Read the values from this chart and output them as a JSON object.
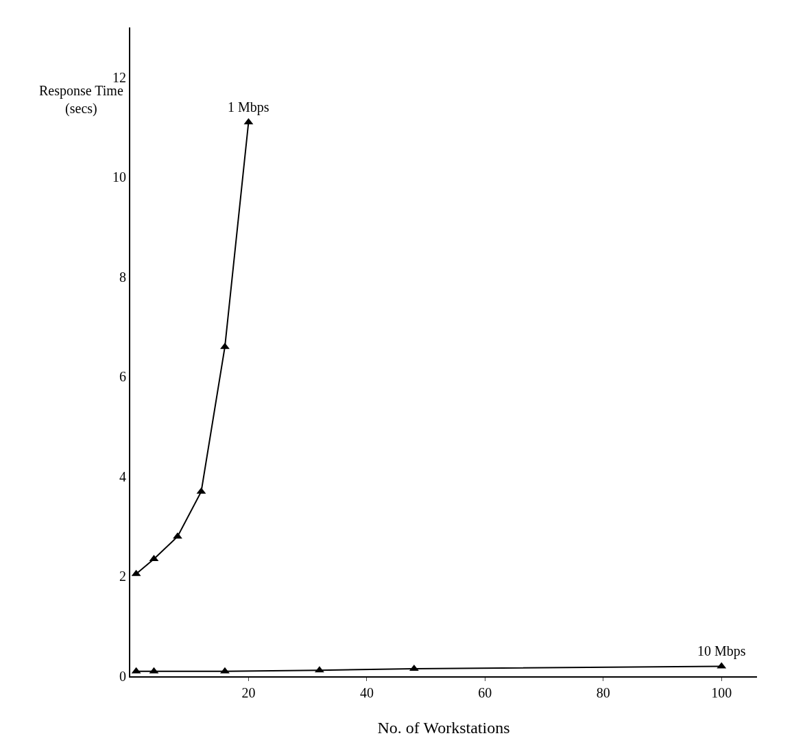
{
  "chart_data": {
    "type": "line",
    "xlabel": "No. of Workstations",
    "ylabel": "Response Time (secs)",
    "series": [
      {
        "name": "1 Mbps",
        "color": "#000000",
        "x": [
          1,
          4,
          8,
          12,
          16,
          20
        ],
        "values": [
          2.05,
          2.35,
          2.8,
          3.7,
          6.6,
          11.1
        ]
      },
      {
        "name": "10 Mbps",
        "color": "#000000",
        "x": [
          1,
          4,
          16,
          32,
          48,
          100
        ],
        "values": [
          0.1,
          0.1,
          0.1,
          0.12,
          0.15,
          0.2
        ]
      }
    ],
    "xlim": [
      0,
      106
    ],
    "ylim": [
      0,
      13
    ],
    "xticks": [
      20,
      40,
      60,
      80,
      100
    ],
    "yticks": [
      0,
      2,
      4,
      6,
      8,
      10,
      12
    ],
    "grid": false,
    "legend": false,
    "marker": "triangle",
    "line_style": "solid"
  }
}
